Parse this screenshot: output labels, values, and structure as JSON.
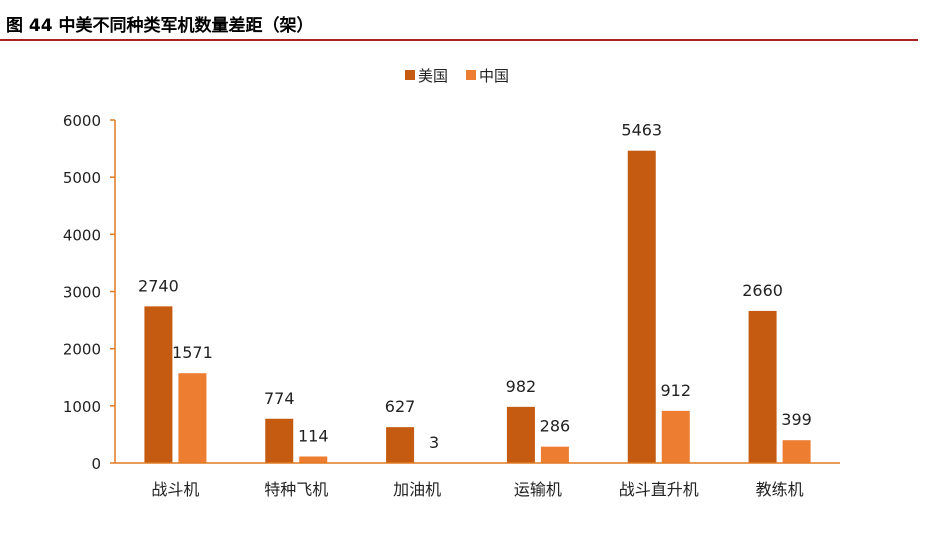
{
  "figure_title": "图 44 中美不同种类军机数量差距（架）",
  "colors": {
    "title_rule": "#a8211c",
    "axis": "#e07a20",
    "usa": "#c55a11",
    "china": "#ed7d31"
  },
  "chart_data": {
    "type": "bar",
    "title": "",
    "xlabel": "",
    "ylabel": "",
    "categories": [
      "战斗机",
      "特种飞机",
      "加油机",
      "运输机",
      "战斗直升机",
      "教练机"
    ],
    "series": [
      {
        "name": "美国",
        "values": [
          2740,
          774,
          627,
          982,
          5463,
          2660
        ]
      },
      {
        "name": "中国",
        "values": [
          1571,
          114,
          3,
          286,
          912,
          399
        ]
      }
    ],
    "ylim": [
      0,
      6000
    ],
    "yticks": [
      "0",
      "1000",
      "2000",
      "3000",
      "4000",
      "5000",
      "6000"
    ],
    "grid": false,
    "legend_position": "top-center",
    "data_labels": true
  }
}
